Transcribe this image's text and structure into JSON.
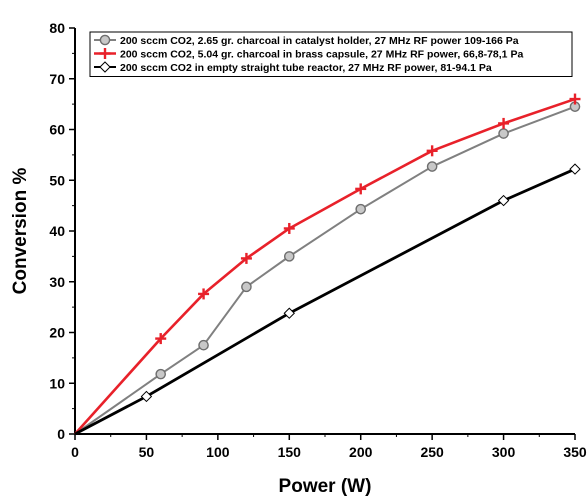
{
  "chart_data": {
    "type": "line",
    "xlabel": "Power (W)",
    "ylabel": "Conversion %",
    "xlim": [
      0,
      350
    ],
    "ylim": [
      0,
      80
    ],
    "xticks": [
      0,
      50,
      100,
      150,
      200,
      250,
      300,
      350
    ],
    "yticks": [
      0,
      10,
      20,
      30,
      40,
      50,
      60,
      70,
      80
    ],
    "grid": false,
    "legend_position": "top-left",
    "series": [
      {
        "name": "200 sccm CO2, 2.65 gr. charcoal in catalyst holder, 27 MHz RF power 109-166 Pa",
        "color": "#808080",
        "marker": "circle",
        "x": [
          0,
          60,
          90,
          120,
          150,
          200,
          250,
          300,
          350
        ],
        "y": [
          0,
          11.8,
          17.5,
          29,
          35,
          44.3,
          52.7,
          59.2,
          64.5
        ]
      },
      {
        "name": "200 sccm CO2, 5.04 gr. charcoal in brass capsule, 27 MHz RF power, 66,8-78,1 Pa",
        "color": "#e8212a",
        "marker": "plus",
        "x": [
          0,
          60,
          90,
          120,
          150,
          200,
          250,
          300,
          350
        ],
        "y": [
          0,
          18.8,
          27.6,
          34.6,
          40.5,
          48.3,
          55.8,
          61.2,
          66
        ]
      },
      {
        "name": "200 sccm CO2 in empty straight tube reactor, 27 MHz RF power, 81-94.1 Pa",
        "color": "#000000",
        "marker": "diamond",
        "x": [
          0,
          50,
          150,
          300,
          350
        ],
        "y": [
          0,
          7.4,
          23.8,
          46,
          52.2
        ]
      }
    ]
  }
}
